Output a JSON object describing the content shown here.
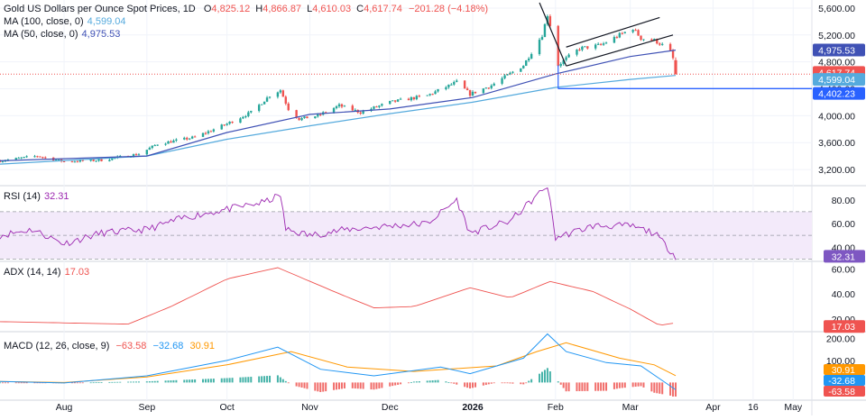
{
  "header": {
    "title": "Gold US Dollars per Ounce Spot Prices, 1D",
    "ohlc": {
      "o_label": "O",
      "o": "4,825.12",
      "h_label": "H",
      "h": "4,866.87",
      "l_label": "L",
      "l": "4,610.03",
      "c_label": "C",
      "c": "4,617.74",
      "change": "−201.28 (−4.18%)"
    },
    "ma100": {
      "label": "MA (100, close, 0)",
      "value": "4,599.04"
    },
    "ma50": {
      "label": "MA (50, close, 0)",
      "value": "4,975.53"
    }
  },
  "colors": {
    "up": "#26a69a",
    "down": "#ef5350",
    "ma50": "#3f51b5",
    "ma100": "#55aadd",
    "rsi": "#9c27b0",
    "adx": "#ef5350",
    "macd": "#2196f3",
    "signal": "#ff9800",
    "support": "#2962ff",
    "channel": "#131722",
    "grid": "#f0f3fa",
    "axis_text": "#131722"
  },
  "price_axis": {
    "ticks": [
      "5,600.00",
      "5,200.00",
      "4,800.00",
      "4,400.00",
      "4,000.00",
      "3,600.00",
      "3,200.00"
    ]
  },
  "price_labels": {
    "ma50": "4,975.53",
    "close": "4,617.74",
    "ma100": "4,599.04",
    "support": "4,402.23"
  },
  "rsi": {
    "label": "RSI (14)",
    "value": "32.31",
    "ticks": [
      "80.00",
      "60.00",
      "40.00"
    ],
    "current": "32.31"
  },
  "adx": {
    "label": "ADX (14, 14)",
    "value": "17.03",
    "ticks": [
      "60.00",
      "40.00",
      "20.00"
    ],
    "current": "17.03"
  },
  "macd": {
    "label": "MACD (12, 26, close, 9)",
    "hist_value": "−63.58",
    "macd_value": "−32.68",
    "signal_value": "30.91",
    "ticks": [
      "200.00",
      "100.00"
    ],
    "labels": {
      "signal": "30.91",
      "macd": "-32.68",
      "hist": "-63.58"
    }
  },
  "time_axis": [
    "Aug",
    "Sep",
    "Oct",
    "Nov",
    "Dec",
    "2026",
    "Feb",
    "Mar",
    "Apr",
    "16",
    "May"
  ],
  "chart_data": {
    "type": "candlestick",
    "title": "Gold US Dollars per Ounce Spot Prices, 1D",
    "price_ylim": [
      3000,
      5720
    ],
    "price_path": [
      [
        "2025-07-08",
        3330
      ],
      [
        "2025-07-22",
        3400
      ],
      [
        "2025-08-01",
        3320
      ],
      [
        "2025-08-15",
        3340
      ],
      [
        "2025-08-29",
        3430
      ],
      [
        "2025-09-05",
        3580
      ],
      [
        "2025-09-19",
        3680
      ],
      [
        "2025-10-01",
        3880
      ],
      [
        "2025-10-10",
        4050
      ],
      [
        "2025-10-17",
        4300
      ],
      [
        "2025-10-21",
        4380
      ],
      [
        "2025-10-24",
        4100
      ],
      [
        "2025-10-28",
        3950
      ],
      [
        "2025-11-04",
        4000
      ],
      [
        "2025-11-12",
        4150
      ],
      [
        "2025-11-20",
        4050
      ],
      [
        "2025-12-01",
        4200
      ],
      [
        "2025-12-15",
        4300
      ],
      [
        "2025-12-26",
        4500
      ],
      [
        "2025-12-31",
        4320
      ],
      [
        "2026-01-08",
        4450
      ],
      [
        "2026-01-20",
        4750
      ],
      [
        "2026-01-27",
        5200
      ],
      [
        "2026-01-29",
        5500
      ],
      [
        "2026-01-30",
        5350
      ],
      [
        "2026-02-02",
        4750
      ],
      [
        "2026-02-05",
        4850
      ],
      [
        "2026-02-10",
        5000
      ],
      [
        "2026-02-18",
        5050
      ],
      [
        "2026-02-25",
        5200
      ],
      [
        "2026-03-02",
        5300
      ],
      [
        "2026-03-05",
        5150
      ],
      [
        "2026-03-10",
        5120
      ],
      [
        "2026-03-13",
        5050
      ],
      [
        "2026-03-16",
        4950
      ],
      [
        "2026-03-17",
        4850
      ],
      [
        "2026-03-18",
        4617.74
      ]
    ],
    "last_candle": {
      "date": "2026-03-18",
      "open": 4825.12,
      "high": 4866.87,
      "low": 4610.03,
      "close": 4617.74
    },
    "series": [
      {
        "name": "MA (100, close, 0)",
        "last": 4599.04,
        "points": [
          [
            "2025-07-08",
            3280
          ],
          [
            "2025-09-01",
            3400
          ],
          [
            "2025-10-01",
            3650
          ],
          [
            "2025-11-01",
            3850
          ],
          [
            "2025-12-01",
            4030
          ],
          [
            "2026-01-01",
            4200
          ],
          [
            "2026-02-01",
            4420
          ],
          [
            "2026-03-01",
            4540
          ],
          [
            "2026-03-18",
            4599.04
          ]
        ]
      },
      {
        "name": "MA (50, close, 0)",
        "last": 4975.53,
        "points": [
          [
            "2025-07-08",
            3330
          ],
          [
            "2025-09-01",
            3400
          ],
          [
            "2025-10-01",
            3750
          ],
          [
            "2025-11-01",
            4020
          ],
          [
            "2025-12-01",
            4100
          ],
          [
            "2026-01-01",
            4270
          ],
          [
            "2026-02-01",
            4620
          ],
          [
            "2026-03-01",
            4880
          ],
          [
            "2026-03-18",
            4975.53
          ]
        ]
      }
    ],
    "support_level": 4402.23,
    "rsi": {
      "ylim": [
        28,
        92
      ],
      "levels": [
        70,
        50,
        30
      ],
      "points": [
        [
          "2025-07-08",
          50
        ],
        [
          "2025-07-20",
          55
        ],
        [
          "2025-08-01",
          43
        ],
        [
          "2025-08-15",
          52
        ],
        [
          "2025-09-01",
          55
        ],
        [
          "2025-09-15",
          65
        ],
        [
          "2025-10-01",
          72
        ],
        [
          "2025-10-15",
          78
        ],
        [
          "2025-10-21",
          84
        ],
        [
          "2025-10-23",
          55
        ],
        [
          "2025-11-01",
          50
        ],
        [
          "2025-11-15",
          55
        ],
        [
          "2025-12-01",
          58
        ],
        [
          "2025-12-15",
          60
        ],
        [
          "2025-12-26",
          80
        ],
        [
          "2025-12-31",
          52
        ],
        [
          "2026-01-15",
          62
        ],
        [
          "2026-01-29",
          92
        ],
        [
          "2026-02-01",
          48
        ],
        [
          "2026-02-15",
          58
        ],
        [
          "2026-03-01",
          58
        ],
        [
          "2026-03-10",
          52
        ],
        [
          "2026-03-18",
          32.31
        ]
      ]
    },
    "adx": {
      "ylim": [
        10,
        66
      ],
      "points": [
        [
          "2025-07-08",
          18
        ],
        [
          "2025-08-01",
          17
        ],
        [
          "2025-08-25",
          16
        ],
        [
          "2025-09-10",
          30
        ],
        [
          "2025-10-01",
          52
        ],
        [
          "2025-10-20",
          61
        ],
        [
          "2025-11-10",
          42
        ],
        [
          "2025-11-25",
          29
        ],
        [
          "2025-12-10",
          30
        ],
        [
          "2025-12-31",
          45
        ],
        [
          "2026-01-15",
          37
        ],
        [
          "2026-01-30",
          50
        ],
        [
          "2026-02-15",
          42
        ],
        [
          "2026-03-01",
          28
        ],
        [
          "2026-03-12",
          15
        ],
        [
          "2026-03-18",
          17.03
        ]
      ]
    },
    "macd": {
      "ylim": [
        -80,
        230
      ],
      "macd_line": [
        [
          "2025-07-08",
          5
        ],
        [
          "2025-08-01",
          -2
        ],
        [
          "2025-09-01",
          30
        ],
        [
          "2025-10-01",
          100
        ],
        [
          "2025-10-20",
          160
        ],
        [
          "2025-11-05",
          60
        ],
        [
          "2025-11-25",
          30
        ],
        [
          "2025-12-20",
          70
        ],
        [
          "2025-12-31",
          40
        ],
        [
          "2026-01-20",
          110
        ],
        [
          "2026-01-29",
          220
        ],
        [
          "2026-02-05",
          140
        ],
        [
          "2026-02-20",
          90
        ],
        [
          "2026-03-05",
          75
        ],
        [
          "2026-03-18",
          -32.68
        ]
      ],
      "signal_line": [
        [
          "2025-07-08",
          5
        ],
        [
          "2025-08-01",
          0
        ],
        [
          "2025-09-01",
          25
        ],
        [
          "2025-10-01",
          80
        ],
        [
          "2025-10-25",
          140
        ],
        [
          "2025-11-15",
          70
        ],
        [
          "2025-12-10",
          50
        ],
        [
          "2026-01-10",
          75
        ],
        [
          "2026-01-25",
          140
        ],
        [
          "2026-02-05",
          180
        ],
        [
          "2026-02-25",
          110
        ],
        [
          "2026-03-10",
          80
        ],
        [
          "2026-03-18",
          30.91
        ]
      ],
      "histogram_last": -63.58
    },
    "time_range": [
      "2025-07-08",
      "2026-05-08"
    ]
  }
}
